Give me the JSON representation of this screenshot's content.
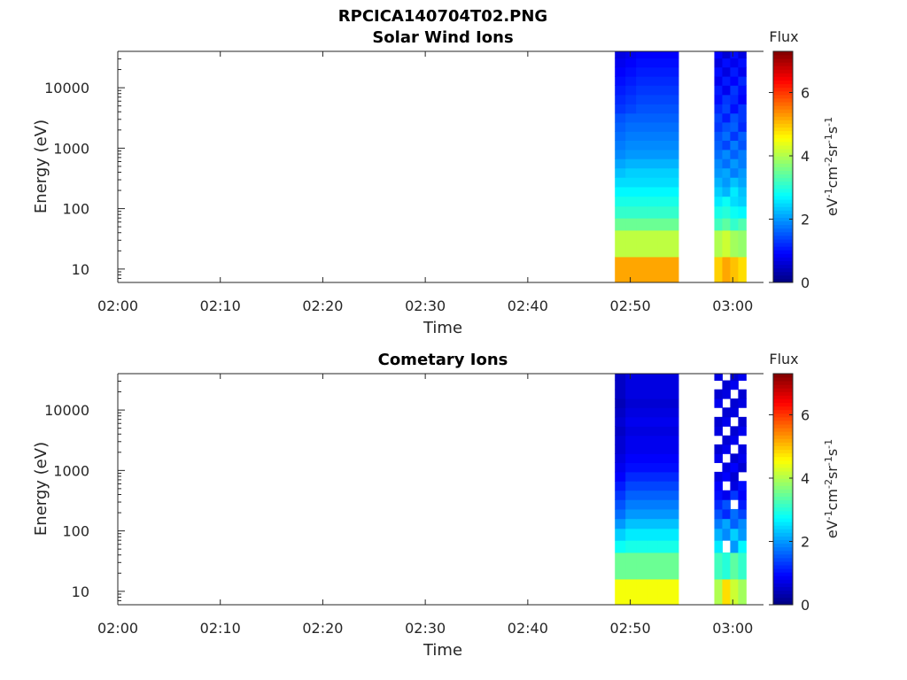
{
  "figure_title": "RPCICA140704T02.PNG",
  "chart_data": [
    {
      "type": "heatmap",
      "title": "Solar Wind Ions",
      "xlabel": "Time",
      "ylabel": "Energy (eV)",
      "x_ticks": [
        "02:00",
        "02:10",
        "02:20",
        "02:30",
        "02:40",
        "02:50",
        "03:00"
      ],
      "x_range_minutes": [
        0,
        63
      ],
      "y_scale": "log",
      "y_ticks": [
        "10",
        "100",
        "1000",
        "10000"
      ],
      "y_range_eV": [
        6,
        40000
      ],
      "colorbar": {
        "label": "Flux",
        "units": "eV-1cm-2sr-1s-1",
        "ticks": [
          "0",
          "2",
          "4",
          "6"
        ],
        "range": [
          0,
          7.3
        ],
        "colormap": "jet"
      },
      "blocks": [
        {
          "t_start_min": 48.5,
          "t_end_min": 54.7,
          "time_bins": 6,
          "energy_bins_eV": [
            6,
            16,
            44,
            70,
            110,
            160,
            230,
            330,
            470,
            670,
            950,
            1350,
            1900,
            2700,
            3800,
            5400,
            7700,
            11000,
            15500,
            22000,
            31000,
            40000
          ],
          "flux": [
            [
              5.2,
              5.2,
              5.2,
              5.2,
              5.2,
              5.2
            ],
            [
              4.1,
              4.1,
              4.1,
              4.1,
              4.1,
              4.1
            ],
            [
              3.5,
              3.5,
              3.5,
              3.5,
              3.5,
              3.5
            ],
            [
              3.1,
              3.1,
              3.1,
              3.1,
              3.1,
              3.1
            ],
            [
              2.9,
              2.9,
              2.9,
              2.9,
              2.9,
              2.9
            ],
            [
              2.7,
              2.7,
              2.7,
              2.7,
              2.7,
              2.7
            ],
            [
              2.5,
              2.5,
              2.5,
              2.5,
              2.5,
              2.5
            ],
            [
              2.3,
              2.4,
              2.4,
              2.4,
              2.4,
              2.4
            ],
            [
              2.1,
              2.2,
              2.2,
              2.2,
              2.2,
              2.2
            ],
            [
              1.9,
              2.0,
              2.0,
              2.0,
              2.0,
              2.0
            ],
            [
              1.8,
              1.9,
              1.9,
              1.9,
              1.9,
              1.9
            ],
            [
              1.7,
              1.8,
              1.8,
              1.8,
              1.8,
              1.8
            ],
            [
              1.6,
              1.7,
              1.7,
              1.7,
              1.7,
              1.7
            ],
            [
              1.5,
              1.6,
              1.6,
              1.6,
              1.6,
              1.6
            ],
            [
              1.3,
              1.4,
              1.5,
              1.5,
              1.5,
              1.5
            ],
            [
              1.2,
              1.3,
              1.4,
              1.4,
              1.4,
              1.4
            ],
            [
              1.1,
              1.2,
              1.3,
              1.3,
              1.3,
              1.3
            ],
            [
              1.0,
              1.1,
              1.2,
              1.2,
              1.2,
              1.2
            ],
            [
              0.9,
              1.0,
              1.1,
              1.1,
              1.1,
              1.1
            ],
            [
              0.8,
              0.9,
              1.0,
              1.0,
              1.0,
              1.0
            ],
            [
              0.7,
              0.8,
              0.9,
              0.9,
              0.9,
              0.9
            ]
          ]
        },
        {
          "t_start_min": 58.2,
          "t_end_min": 61.3,
          "time_bins": 4,
          "energy_bins_eV": [
            6,
            16,
            44,
            70,
            110,
            160,
            230,
            330,
            470,
            670,
            950,
            1350,
            1900,
            2700,
            3800,
            5400,
            7700,
            11000,
            15500,
            22000,
            31000,
            40000
          ],
          "flux": [
            [
              4.9,
              5.2,
              5.0,
              4.8
            ],
            [
              4.0,
              4.2,
              3.9,
              3.8
            ],
            [
              3.2,
              3.4,
              3.1,
              3.3
            ],
            [
              2.9,
              3.0,
              2.8,
              2.7
            ],
            [
              2.6,
              2.8,
              2.5,
              2.4
            ],
            [
              2.4,
              2.2,
              2.6,
              2.3
            ],
            [
              2.2,
              2.0,
              2.3,
              2.1
            ],
            [
              2.0,
              2.1,
              1.8,
              2.0
            ],
            [
              1.9,
              1.7,
              2.0,
              1.8
            ],
            [
              1.7,
              1.9,
              1.6,
              1.8
            ],
            [
              1.6,
              1.4,
              1.8,
              1.5
            ],
            [
              1.5,
              1.7,
              1.3,
              1.6
            ],
            [
              1.3,
              1.5,
              1.6,
              1.2
            ],
            [
              1.4,
              1.1,
              1.5,
              1.3
            ],
            [
              1.2,
              1.4,
              1.0,
              1.3
            ],
            [
              1.0,
              1.3,
              1.2,
              0.9
            ],
            [
              1.1,
              0.8,
              1.3,
              1.0
            ],
            [
              0.8,
              1.1,
              0.9,
              1.2
            ],
            [
              1.0,
              0.7,
              1.1,
              0.8
            ],
            [
              0.7,
              1.0,
              0.8,
              1.0
            ],
            [
              0.9,
              0.6,
              1.0,
              0.7
            ]
          ]
        }
      ]
    },
    {
      "type": "heatmap",
      "title": "Cometary Ions",
      "xlabel": "Time",
      "ylabel": "Energy (eV)",
      "x_ticks": [
        "02:00",
        "02:10",
        "02:20",
        "02:30",
        "02:40",
        "02:50",
        "03:00"
      ],
      "x_range_minutes": [
        0,
        63
      ],
      "y_scale": "log",
      "y_ticks": [
        "10",
        "100",
        "1000",
        "10000"
      ],
      "y_range_eV": [
        6,
        40000
      ],
      "colorbar": {
        "label": "Flux",
        "units": "eV-1cm-2sr-1s-1",
        "ticks": [
          "0",
          "2",
          "4",
          "6"
        ],
        "range": [
          0,
          7.3
        ],
        "colormap": "jet"
      },
      "blocks": [
        {
          "t_start_min": 48.5,
          "t_end_min": 54.7,
          "time_bins": 6,
          "energy_bins_eV": [
            6,
            16,
            44,
            70,
            110,
            160,
            230,
            330,
            470,
            670,
            950,
            1350,
            1900,
            2700,
            3800,
            5400,
            7700,
            11000,
            15500,
            22000,
            31000,
            40000
          ],
          "flux": [
            [
              4.5,
              4.5,
              4.5,
              4.5,
              4.5,
              4.5
            ],
            [
              3.5,
              3.5,
              3.5,
              3.5,
              3.5,
              3.5
            ],
            [
              2.8,
              2.9,
              2.9,
              2.9,
              2.9,
              2.9
            ],
            [
              2.4,
              2.6,
              2.6,
              2.6,
              2.6,
              2.6
            ],
            [
              2.0,
              2.3,
              2.3,
              2.3,
              2.3,
              2.3
            ],
            [
              1.7,
              2.0,
              2.0,
              2.0,
              2.0,
              2.0
            ],
            [
              1.5,
              1.8,
              1.8,
              1.8,
              1.8,
              1.8
            ],
            [
              1.3,
              1.6,
              1.6,
              1.6,
              1.6,
              1.6
            ],
            [
              1.1,
              1.4,
              1.4,
              1.4,
              1.4,
              1.4
            ],
            [
              0.9,
              1.2,
              1.2,
              1.2,
              1.2,
              1.2
            ],
            [
              0.8,
              1.0,
              1.0,
              1.0,
              1.0,
              1.0
            ],
            [
              0.7,
              0.9,
              0.9,
              0.9,
              0.9,
              0.9
            ],
            [
              0.6,
              0.8,
              0.8,
              0.8,
              0.8,
              0.8
            ],
            [
              0.6,
              0.8,
              0.8,
              0.8,
              0.8,
              0.8
            ],
            [
              0.5,
              0.7,
              0.7,
              0.7,
              0.7,
              0.7
            ],
            [
              0.6,
              0.8,
              0.8,
              0.8,
              0.8,
              0.8
            ],
            [
              0.5,
              0.7,
              0.7,
              0.7,
              0.7,
              0.7
            ],
            [
              0.4,
              0.6,
              0.6,
              0.6,
              0.6,
              0.6
            ],
            [
              0.5,
              0.7,
              0.7,
              0.7,
              0.7,
              0.7
            ],
            [
              0.5,
              0.7,
              0.7,
              0.7,
              0.7,
              0.7
            ],
            [
              0.5,
              0.7,
              0.7,
              0.7,
              0.7,
              0.7
            ]
          ]
        },
        {
          "t_start_min": 58.2,
          "t_end_min": 61.3,
          "time_bins": 4,
          "energy_bins_eV": [
            6,
            16,
            44,
            70,
            110,
            160,
            230,
            330,
            470,
            670,
            950,
            1350,
            1900,
            2700,
            3800,
            5400,
            7700,
            11000,
            15500,
            22000,
            31000,
            40000
          ],
          "flux": [
            [
              4.0,
              4.8,
              4.2,
              3.9
            ],
            [
              3.2,
              3.0,
              3.4,
              3.1
            ],
            [
              2.6,
              null,
              2.0,
              2.7
            ],
            [
              2.2,
              1.9,
              2.4,
              2.0
            ],
            [
              1.8,
              2.1,
              1.6,
              1.9
            ],
            [
              1.5,
              1.2,
              1.7,
              1.4
            ],
            [
              1.2,
              1.5,
              null,
              1.1
            ],
            [
              1.0,
              0.8,
              1.3,
              0.9
            ],
            [
              0.9,
              null,
              0.7,
              1.0
            ],
            [
              0.7,
              0.9,
              0.6,
              null
            ],
            [
              null,
              0.7,
              0.9,
              0.6
            ],
            [
              0.8,
              null,
              0.6,
              0.8
            ],
            [
              0.6,
              0.8,
              null,
              0.7
            ],
            [
              null,
              0.6,
              0.8,
              null
            ],
            [
              0.7,
              null,
              0.6,
              0.8
            ],
            [
              0.6,
              0.8,
              null,
              0.6
            ],
            [
              null,
              0.6,
              0.7,
              null
            ],
            [
              0.8,
              null,
              0.6,
              0.7
            ],
            [
              0.6,
              0.7,
              null,
              0.6
            ],
            [
              null,
              0.6,
              0.8,
              null
            ],
            [
              0.7,
              null,
              0.6,
              0.8
            ]
          ]
        }
      ]
    }
  ]
}
